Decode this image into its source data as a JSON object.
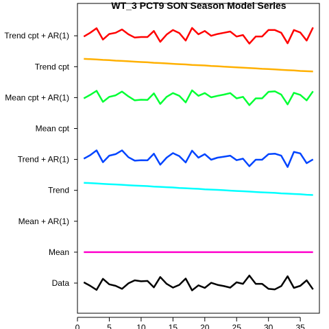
{
  "chart_data": {
    "type": "line",
    "title": "WT_3 PCT9 SON Season Model Series",
    "xlabel": "",
    "ylabel": "",
    "xlim": [
      0,
      38
    ],
    "x_ticks": [
      0,
      5,
      10,
      15,
      20,
      25,
      30,
      35
    ],
    "rows": [
      "Data",
      "Mean",
      "Mean + AR(1)",
      "Trend",
      "Trend + AR(1)",
      "Mean cpt",
      "Mean cpt + AR(1)",
      "Trend cpt",
      "Trend cpt + AR(1)"
    ],
    "x": [
      1,
      2,
      3,
      4,
      5,
      6,
      7,
      8,
      9,
      10,
      11,
      12,
      13,
      14,
      15,
      16,
      17,
      18,
      19,
      20,
      21,
      22,
      23,
      24,
      25,
      26,
      27,
      28,
      29,
      30,
      31,
      32,
      33,
      34,
      35,
      36,
      37
    ],
    "series": [
      {
        "name": "Data",
        "row": 0,
        "color": "#000000",
        "values": [
          0.05,
          -0.18,
          -0.45,
          0.28,
          -0.08,
          -0.18,
          -0.38,
          -0.02,
          0.18,
          0.12,
          0.14,
          -0.28,
          0.4,
          -0.05,
          -0.3,
          -0.12,
          0.3,
          -0.48,
          -0.15,
          -0.32,
          0.02,
          -0.12,
          -0.2,
          -0.3,
          0.05,
          -0.05,
          0.5,
          -0.05,
          -0.05,
          -0.38,
          -0.42,
          -0.2,
          0.45,
          -0.32,
          -0.18,
          0.18,
          -0.42
        ]
      },
      {
        "name": "Mean",
        "row": 1,
        "color": "#ff00cc",
        "values": [
          0,
          0,
          0,
          0,
          0,
          0,
          0,
          0,
          0,
          0,
          0,
          0,
          0,
          0,
          0,
          0,
          0,
          0,
          0,
          0,
          0,
          0,
          0,
          0,
          0,
          0,
          0,
          0,
          0,
          0,
          0,
          0,
          0,
          0,
          0,
          0,
          0
        ]
      },
      {
        "name": "Trend",
        "row": 3,
        "color": "#00ffff",
        "values": [
          0.5,
          0.48,
          0.46,
          0.43,
          0.41,
          0.39,
          0.37,
          0.34,
          0.32,
          0.3,
          0.28,
          0.25,
          0.23,
          0.21,
          0.19,
          0.16,
          0.14,
          0.12,
          0.1,
          0.07,
          0.05,
          0.03,
          0.01,
          -0.02,
          -0.04,
          -0.06,
          -0.08,
          -0.11,
          -0.13,
          -0.15,
          -0.17,
          -0.2,
          -0.22,
          -0.24,
          -0.26,
          -0.29,
          -0.31
        ]
      },
      {
        "name": "Trend + AR(1)",
        "row": 4,
        "color": "#0044ff",
        "values": [
          0.05,
          0.28,
          0.6,
          -0.18,
          0.25,
          0.35,
          0.6,
          0.15,
          -0.08,
          -0.05,
          -0.06,
          0.38,
          -0.35,
          0.12,
          0.42,
          0.22,
          -0.2,
          0.58,
          0.12,
          0.35,
          -0.02,
          0.12,
          0.18,
          0.25,
          -0.05,
          0.05,
          -0.45,
          -0.02,
          -0.02,
          0.35,
          0.38,
          0.25,
          -0.5,
          0.5,
          0.4,
          -0.25,
          0.0
        ]
      },
      {
        "name": "Mean cpt + AR(1)",
        "row": 6,
        "color": "#00ff33",
        "values": [
          -0.05,
          0.18,
          0.45,
          -0.28,
          0.05,
          0.15,
          0.4,
          0.08,
          -0.18,
          -0.14,
          -0.15,
          0.28,
          -0.42,
          0.05,
          0.3,
          0.12,
          -0.32,
          0.48,
          0.12,
          0.3,
          0.02,
          0.12,
          0.2,
          0.3,
          -0.05,
          0.05,
          -0.5,
          -0.05,
          -0.05,
          0.38,
          0.42,
          0.2,
          -0.45,
          0.32,
          0.18,
          -0.18,
          0.42
        ]
      },
      {
        "name": "Trend cpt",
        "row": 7,
        "color": "#ffb000",
        "values": [
          0.52,
          0.5,
          0.48,
          0.45,
          0.43,
          0.4,
          0.38,
          0.36,
          0.33,
          0.31,
          0.29,
          0.26,
          0.24,
          0.22,
          0.19,
          0.17,
          0.15,
          0.12,
          0.1,
          0.08,
          0.05,
          0.03,
          0.0,
          -0.02,
          -0.04,
          -0.07,
          -0.09,
          -0.11,
          -0.14,
          -0.16,
          -0.18,
          -0.21,
          -0.23,
          -0.25,
          -0.28,
          -0.3,
          -0.32
        ]
      },
      {
        "name": "Trend cpt + AR(1)",
        "row": 8,
        "color": "#ff0000",
        "values": [
          -0.05,
          0.2,
          0.5,
          -0.25,
          0.12,
          0.2,
          0.42,
          0.1,
          -0.12,
          -0.08,
          -0.08,
          0.32,
          -0.4,
          0.08,
          0.38,
          0.18,
          -0.32,
          0.52,
          0.1,
          0.32,
          0.0,
          0.12,
          0.2,
          0.28,
          -0.05,
          0.05,
          -0.52,
          -0.05,
          -0.05,
          0.38,
          0.38,
          0.2,
          -0.5,
          0.38,
          0.22,
          -0.32,
          0.55
        ]
      }
    ]
  }
}
